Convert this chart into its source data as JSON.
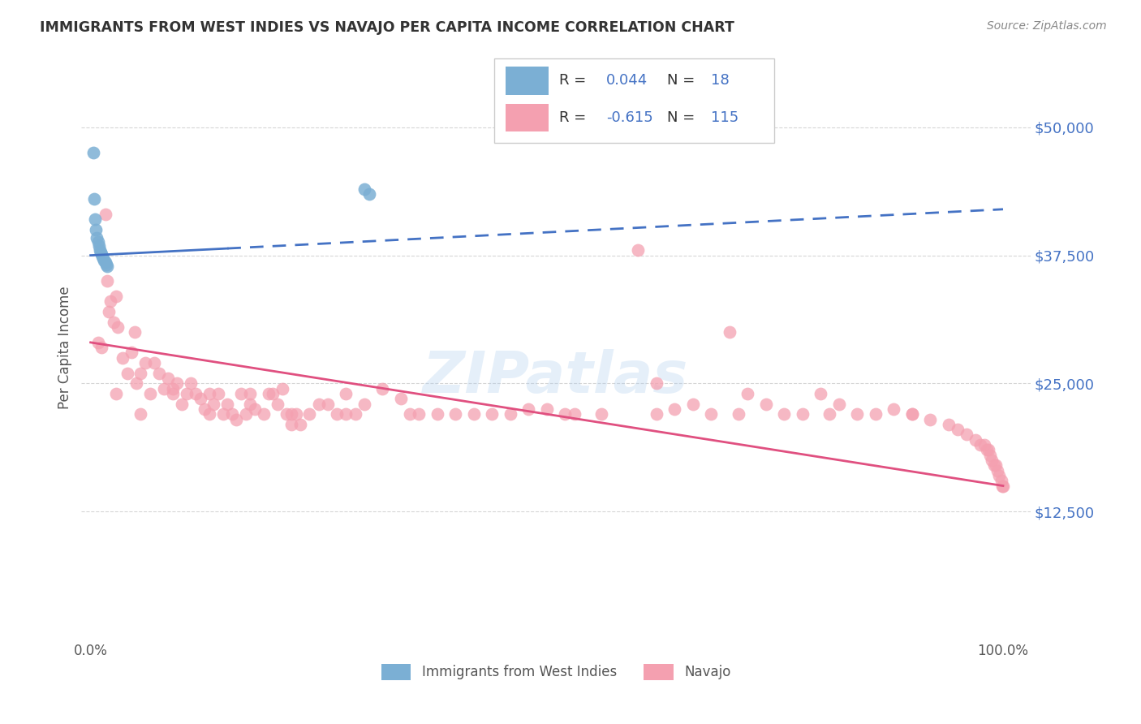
{
  "title": "IMMIGRANTS FROM WEST INDIES VS NAVAJO PER CAPITA INCOME CORRELATION CHART",
  "source": "Source: ZipAtlas.com",
  "ylabel": "Per Capita Income",
  "yticks": [
    12500,
    25000,
    37500,
    50000
  ],
  "ytick_labels": [
    "$12,500",
    "$25,000",
    "$37,500",
    "$50,000"
  ],
  "axis_color": "#4472c4",
  "watermark": "ZIPatlas",
  "blue_color": "#7bafd4",
  "pink_color": "#f4a0b0",
  "trend_blue": "#4472c4",
  "trend_pink": "#e05080",
  "blue_marker_edge": "#5a9abf",
  "pink_marker_edge": "#e080a0",
  "blue_x": [
    0.003,
    0.004,
    0.005,
    0.006,
    0.007,
    0.008,
    0.009,
    0.01,
    0.011,
    0.012,
    0.013,
    0.014,
    0.015,
    0.016,
    0.017,
    0.018,
    0.3,
    0.305
  ],
  "blue_y": [
    47500,
    43000,
    41000,
    40000,
    39200,
    38800,
    38400,
    38000,
    37800,
    37600,
    37400,
    37200,
    37000,
    36800,
    36600,
    36400,
    44000,
    43500
  ],
  "pink_x": [
    0.008,
    0.012,
    0.016,
    0.018,
    0.02,
    0.022,
    0.025,
    0.028,
    0.03,
    0.035,
    0.04,
    0.045,
    0.048,
    0.05,
    0.055,
    0.06,
    0.065,
    0.07,
    0.075,
    0.08,
    0.085,
    0.09,
    0.095,
    0.1,
    0.105,
    0.11,
    0.115,
    0.12,
    0.125,
    0.13,
    0.135,
    0.14,
    0.145,
    0.15,
    0.155,
    0.16,
    0.165,
    0.17,
    0.175,
    0.18,
    0.19,
    0.195,
    0.2,
    0.205,
    0.21,
    0.215,
    0.22,
    0.225,
    0.23,
    0.24,
    0.25,
    0.26,
    0.27,
    0.28,
    0.29,
    0.3,
    0.32,
    0.34,
    0.36,
    0.38,
    0.42,
    0.44,
    0.48,
    0.5,
    0.52,
    0.56,
    0.6,
    0.62,
    0.64,
    0.66,
    0.68,
    0.7,
    0.72,
    0.74,
    0.76,
    0.78,
    0.8,
    0.82,
    0.84,
    0.86,
    0.88,
    0.9,
    0.92,
    0.94,
    0.95,
    0.96,
    0.97,
    0.975,
    0.98,
    0.982,
    0.984,
    0.986,
    0.988,
    0.99,
    0.992,
    0.994,
    0.996,
    0.998,
    0.999,
    1.0,
    0.028,
    0.055,
    0.09,
    0.13,
    0.175,
    0.22,
    0.28,
    0.35,
    0.4,
    0.46,
    0.53,
    0.62,
    0.71,
    0.81,
    0.9
  ],
  "pink_y": [
    29000,
    28500,
    41500,
    35000,
    32000,
    33000,
    31000,
    33500,
    30500,
    27500,
    26000,
    28000,
    30000,
    25000,
    26000,
    27000,
    24000,
    27000,
    26000,
    24500,
    25500,
    24500,
    25000,
    23000,
    24000,
    25000,
    24000,
    23500,
    22500,
    24000,
    23000,
    24000,
    22000,
    23000,
    22000,
    21500,
    24000,
    22000,
    23000,
    22500,
    22000,
    24000,
    24000,
    23000,
    24500,
    22000,
    21000,
    22000,
    21000,
    22000,
    23000,
    23000,
    22000,
    22000,
    22000,
    23000,
    24500,
    23500,
    22000,
    22000,
    22000,
    22000,
    22500,
    22500,
    22000,
    22000,
    38000,
    25000,
    22500,
    23000,
    22000,
    30000,
    24000,
    23000,
    22000,
    22000,
    24000,
    23000,
    22000,
    22000,
    22500,
    22000,
    21500,
    21000,
    20500,
    20000,
    19500,
    19000,
    19000,
    18500,
    18500,
    18000,
    17500,
    17000,
    17000,
    16500,
    16000,
    15500,
    15000,
    15000,
    24000,
    22000,
    24000,
    22000,
    24000,
    22000,
    24000,
    22000,
    22000,
    22000,
    22000,
    22000,
    22000,
    22000,
    22000
  ]
}
